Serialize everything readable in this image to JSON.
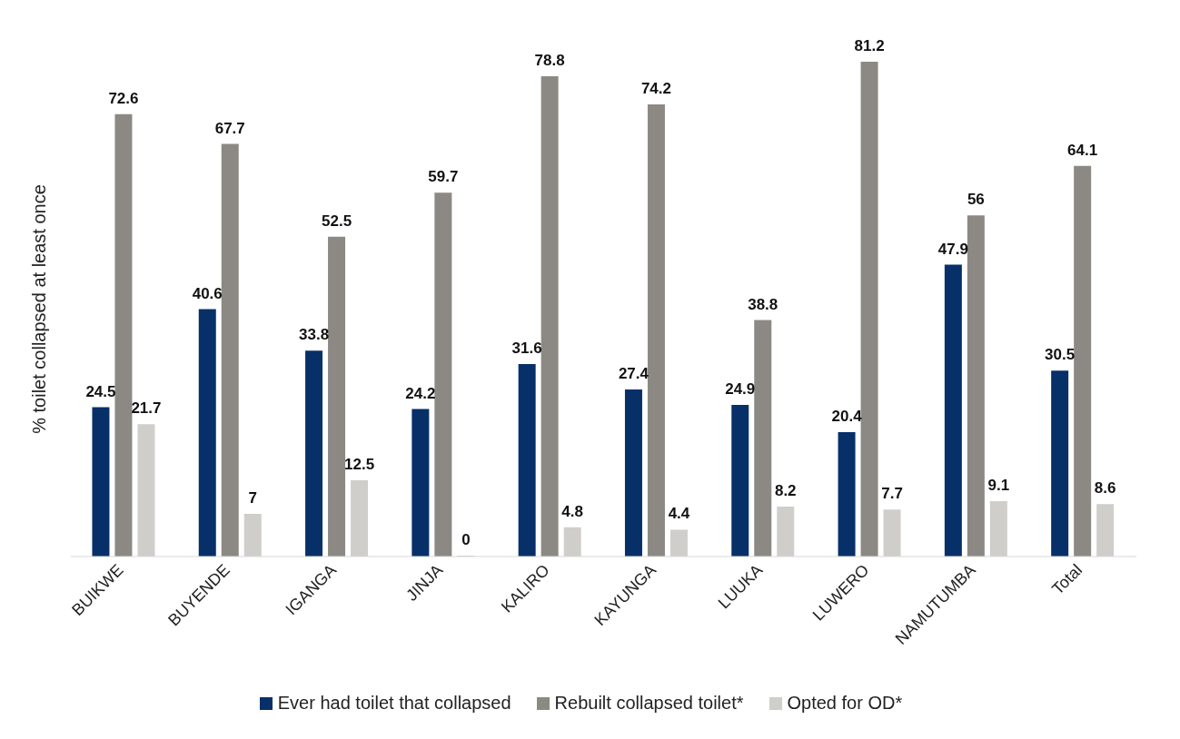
{
  "chart_data": {
    "type": "bar",
    "ylabel": "% toilet collapsed at least once",
    "categories": [
      "BUIKWE",
      "BUYENDE",
      "IGANGA",
      "JINJA",
      "KALIRO",
      "KAYUNGA",
      "LUUKA",
      "LUWERO",
      "NAMUTUMBA",
      "Total"
    ],
    "series": [
      {
        "name": "Ever had toilet that collapsed",
        "color": "#073069",
        "values": [
          24.5,
          40.6,
          33.8,
          24.2,
          31.6,
          27.4,
          24.9,
          20.4,
          47.9,
          30.5
        ]
      },
      {
        "name": "Rebuilt collapsed toilet*",
        "color": "#8c8984",
        "values": [
          72.6,
          67.7,
          52.5,
          59.7,
          78.8,
          74.2,
          38.8,
          81.2,
          56,
          64.1
        ]
      },
      {
        "name": "Opted for OD*",
        "color": "#d0cecb",
        "values": [
          21.7,
          7,
          12.5,
          0,
          4.8,
          4.4,
          8.2,
          7.7,
          9.1,
          8.6
        ]
      }
    ],
    "data_labels": true,
    "grid": false,
    "legend": "bottom"
  }
}
